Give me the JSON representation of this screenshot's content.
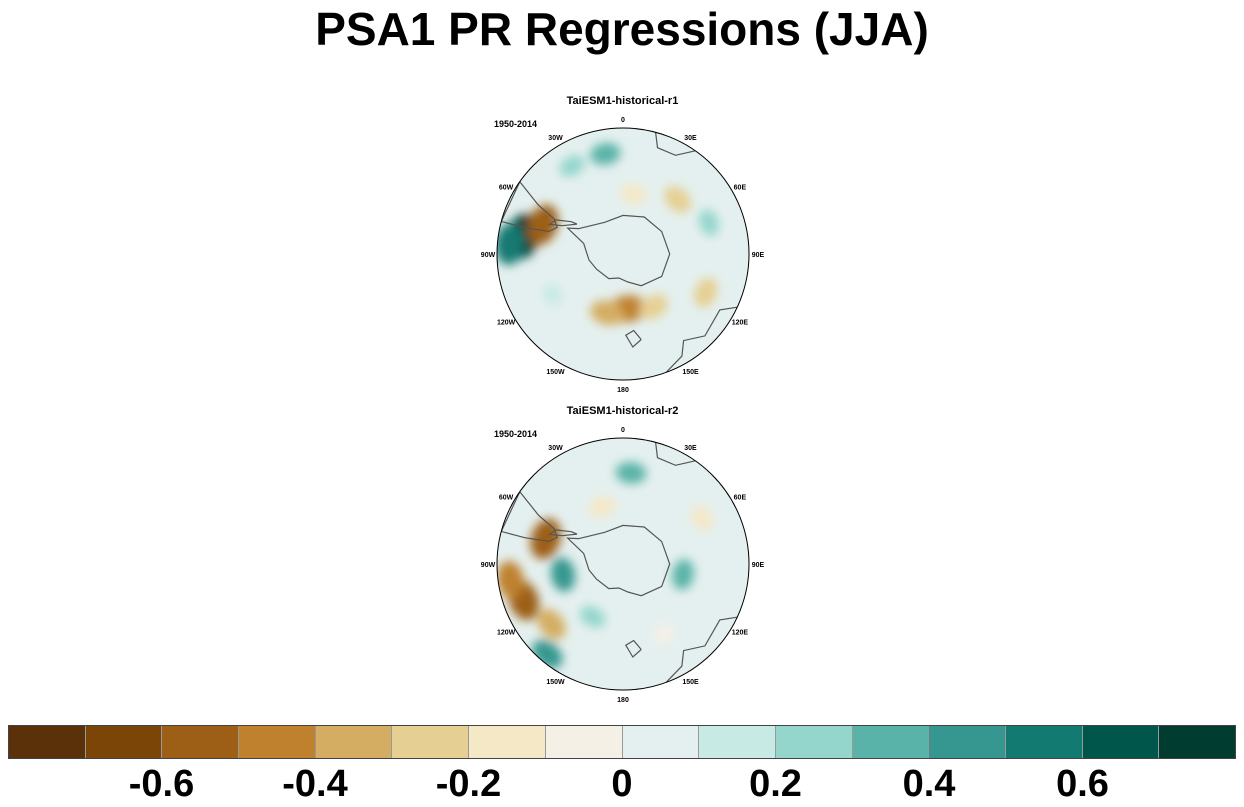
{
  "title": "PSA1 PR Regressions (JJA)",
  "panels": [
    {
      "title": "TaiESM1-historical-r1",
      "period": "1950-2014",
      "lon_labels": [
        "0",
        "30E",
        "60E",
        "90E",
        "120E",
        "150E",
        "180",
        "150W",
        "120W",
        "90W",
        "60W",
        "30W"
      ],
      "anomalies": [
        {
          "lon": -80,
          "colat": 50,
          "value": 0.7
        },
        {
          "lon": -85,
          "colat": 56,
          "value": 0.6
        },
        {
          "lon": -70,
          "colat": 42,
          "value": -0.6
        },
        {
          "lon": 175,
          "colat": 27,
          "value": -0.5
        },
        {
          "lon": -165,
          "colat": 30,
          "value": -0.4
        },
        {
          "lon": 150,
          "colat": 30,
          "value": -0.3
        },
        {
          "lon": 115,
          "colat": 45,
          "value": -0.3
        },
        {
          "lon": 45,
          "colat": 38,
          "value": -0.3
        },
        {
          "lon": -10,
          "colat": 50,
          "value": 0.3
        },
        {
          "lon": -30,
          "colat": 50,
          "value": 0.2
        },
        {
          "lon": 10,
          "colat": 30,
          "value": -0.2
        },
        {
          "lon": 70,
          "colat": 45,
          "value": 0.2
        },
        {
          "lon": -120,
          "colat": 40,
          "value": 0.1
        }
      ]
    },
    {
      "title": "TaiESM1-historical-r2",
      "period": "1950-2014",
      "lon_labels": [
        "0",
        "30E",
        "60E",
        "90E",
        "120E",
        "150E",
        "180",
        "150W",
        "120W",
        "90W",
        "60W",
        "30W"
      ],
      "anomalies": [
        {
          "lon": -110,
          "colat": 52,
          "value": -0.6
        },
        {
          "lon": -98,
          "colat": 56,
          "value": -0.5
        },
        {
          "lon": -130,
          "colat": 46,
          "value": -0.4
        },
        {
          "lon": -72,
          "colat": 40,
          "value": -0.6
        },
        {
          "lon": -100,
          "colat": 30,
          "value": 0.4
        },
        {
          "lon": -140,
          "colat": 58,
          "value": 0.4
        },
        {
          "lon": 5,
          "colat": 45,
          "value": 0.3
        },
        {
          "lon": 100,
          "colat": 30,
          "value": 0.3
        },
        {
          "lon": -20,
          "colat": 30,
          "value": -0.2
        },
        {
          "lon": 60,
          "colat": 45,
          "value": -0.2
        },
        {
          "lon": -150,
          "colat": 30,
          "value": 0.2
        },
        {
          "lon": 150,
          "colat": 40,
          "value": -0.1
        }
      ]
    }
  ],
  "colorbar": {
    "colors": [
      "#5a3108",
      "#7c4508",
      "#9d5e16",
      "#bf812d",
      "#d4ad62",
      "#e6cf92",
      "#f5e8c6",
      "#f5f0e6",
      "#e4f0ef",
      "#c7eae5",
      "#94d6cc",
      "#5ab3a8",
      "#35978f",
      "#137a72",
      "#01564c",
      "#003c30"
    ],
    "labels": [
      "-0.6",
      "-0.4",
      "-0.2",
      "0",
      "0.2",
      "0.4",
      "0.6"
    ],
    "label_values": [
      -0.6,
      -0.4,
      -0.2,
      0,
      0.2,
      0.4,
      0.6
    ],
    "min": -0.8,
    "max": 0.8
  }
}
